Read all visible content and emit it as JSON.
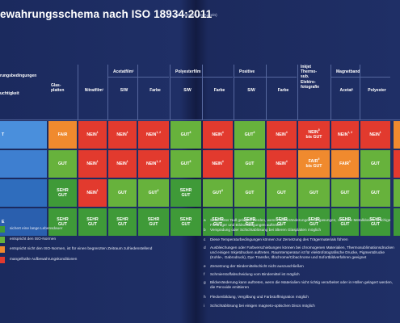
{
  "title": "ewahrungsschema nach ISO 18934:2011",
  "subtitle": "(Übersetzung der Autorin)",
  "header": {
    "row_label_top": "rungsbedingungen",
    "row_label_bottom": "uchtigkeit",
    "columns": [
      {
        "key": "glas",
        "label": "Glas-\nplatten"
      },
      {
        "key": "nitrat",
        "label": "Nitratfilm¹"
      },
      {
        "key": "acetat_sw",
        "label": "S/W"
      },
      {
        "key": "acetat_farbe",
        "label": "Farbe"
      },
      {
        "key": "poly_sw",
        "label": "S/W"
      },
      {
        "key": "poly_farbe",
        "label": "Farbe"
      },
      {
        "key": "pos_sw",
        "label": "S/W"
      },
      {
        "key": "pos_farbe",
        "label": "Farbe"
      },
      {
        "key": "inkjet",
        "label": "Inkjet\nThermo-\nsub.\nElektro-\nfotografie"
      },
      {
        "key": "mag_acetat",
        "label": "Acetat¹"
      },
      {
        "key": "mag_poly",
        "label": "Polyester"
      }
    ],
    "groups": [
      {
        "label": "Acetatfilm¹"
      },
      {
        "label": "Polyesterfilm"
      },
      {
        "label": "Positive"
      },
      {
        "label": "Magnetband"
      }
    ]
  },
  "rows": [
    {
      "label": "T",
      "cells": [
        {
          "text": "FAIR",
          "sup": "",
          "color": "#f08a2e"
        },
        {
          "text": "NEIN",
          "sup": "1",
          "color": "#e23a2e"
        },
        {
          "text": "NEIN",
          "sup": "1",
          "color": "#e23a2e"
        },
        {
          "text": "NEIN",
          "sup": "1, 2",
          "color": "#e23a2e"
        },
        {
          "text": "GUT",
          "sup": "3",
          "color": "#67b23c"
        },
        {
          "text": "NEIN",
          "sup": "4",
          "color": "#e23a2e"
        },
        {
          "text": "GUT",
          "sup": "3",
          "color": "#67b23c"
        },
        {
          "text": "NEIN",
          "sup": "4",
          "color": "#e23a2e"
        },
        {
          "text": "NEIN",
          "sup": "5",
          "line2": "bis GUT",
          "color": "#e23a2e"
        },
        {
          "text": "NEIN",
          "sup": "1, 2",
          "color": "#e23a2e"
        },
        {
          "text": "NEIN",
          "sup": "1",
          "color": "#e23a2e"
        }
      ]
    },
    {
      "label": "",
      "cells": [
        {
          "text": "GUT",
          "sup": "",
          "color": "#67b23c"
        },
        {
          "text": "NEIN",
          "sup": "1",
          "color": "#e23a2e"
        },
        {
          "text": "NEIN",
          "sup": "1",
          "color": "#e23a2e"
        },
        {
          "text": "NEIN",
          "sup": "1, 2",
          "color": "#e23a2e"
        },
        {
          "text": "GUT",
          "sup": "3",
          "color": "#67b23c"
        },
        {
          "text": "NEIN",
          "sup": "4",
          "color": "#e23a2e"
        },
        {
          "text": "GUT",
          "sup": "",
          "color": "#67b23c"
        },
        {
          "text": "NEIN",
          "sup": "4",
          "color": "#e23a2e"
        },
        {
          "text": "FAIR",
          "sup": "5",
          "line2": "bis GUT",
          "color": "#f08a2e"
        },
        {
          "text": "FAIR",
          "sup": "1",
          "color": "#f08a2e"
        },
        {
          "text": "GUT",
          "sup": "",
          "color": "#67b23c"
        }
      ]
    },
    {
      "label": "",
      "cells": [
        {
          "text": "SEHR",
          "line2": "GUT",
          "sup": "",
          "color": "#3f9a38"
        },
        {
          "text": "NEIN",
          "sup": "1",
          "color": "#e23a2e"
        },
        {
          "text": "GUT",
          "sup": "",
          "color": "#67b23c"
        },
        {
          "text": "GUT",
          "sup": "2",
          "color": "#67b23c"
        },
        {
          "text": "SEHR",
          "line2": "GUT",
          "sup": "",
          "color": "#3f9a38"
        },
        {
          "text": "GUT",
          "sup": "3",
          "color": "#67b23c"
        },
        {
          "text": "GUT",
          "sup": "",
          "color": "#67b23c"
        },
        {
          "text": "GUT",
          "sup": "",
          "color": "#67b23c"
        },
        {
          "text": "GUT",
          "sup": "",
          "color": "#67b23c"
        },
        {
          "text": "GUT",
          "sup": "",
          "color": "#67b23c"
        },
        {
          "text": "GUT",
          "sup": "",
          "color": "#67b23c"
        }
      ]
    },
    {
      "label": "E",
      "cells": [
        {
          "text": "SEHR",
          "line2": "GUT",
          "sup": "",
          "color": "#3f9a38"
        },
        {
          "text": "SEHR",
          "line2": "GUT",
          "sup": "",
          "color": "#3f9a38"
        },
        {
          "text": "SEHR",
          "line2": "GUT",
          "sup": "",
          "color": "#3f9a38"
        },
        {
          "text": "SEHR",
          "line2": "GUT",
          "sup": "",
          "color": "#3f9a38"
        },
        {
          "text": "SEHR",
          "line2": "GUT",
          "sup": "",
          "color": "#3f9a38"
        },
        {
          "text": "SEHR",
          "line2": "GUT",
          "sup": "",
          "color": "#3f9a38"
        },
        {
          "text": "SEHR",
          "line2": "GUT",
          "sup": "",
          "color": "#3f9a38"
        },
        {
          "text": "SEHR",
          "line2": "GUT",
          "sup": "",
          "color": "#3f9a38"
        },
        {
          "text": "SEHR",
          "line2": "GUT",
          "sup": "",
          "color": "#3f9a38"
        },
        {
          "text": "SEHR",
          "line2": "GUT",
          "sup": "",
          "color": "#3f9a38"
        },
        {
          "text": "SEHR",
          "line2": "GUT",
          "sup": "",
          "color": "#3f9a38"
        }
      ]
    }
  ],
  "row_label_colors": [
    "#4a8fdc",
    "#3e7fd0",
    "#2f6dbd",
    "#2a5fae"
  ],
  "edge_colors": [
    "#f08a2e",
    "#e23a2e",
    "#67b23c",
    "#3f9a38"
  ],
  "legend": [
    {
      "color": "#3f9a38",
      "text": "sichert eine lange Lebensdauer"
    },
    {
      "color": "#67b23c",
      "text": "entspricht den ISO-Normen"
    },
    {
      "color": "#f08a2e",
      "text": "entspricht nicht den ISO-Normen, ist für einen begrenzten Zeitraum zufriedenstellend"
    },
    {
      "color": "#e23a2e",
      "text": "mangelhafte Aufbewahrungskonditionen"
    }
  ],
  "footnotes": [
    {
      "key": "a",
      "text": "Sollte unter Null gelagert werden, wenn Farbveränderungen, Ausgasungen, rostende Metalldosen, brüchige Filmträger und Bildschädigungen auftreten"
    },
    {
      "key": "b",
      "text": "Verspödung oder Schichtablösung bei älteren Glasplatten möglich"
    },
    {
      "key": "c",
      "text": "Diese Temperaturbedingungen können zur Zersetzung des Trägermaterials führen"
    },
    {
      "key": "d",
      "text": "Ausbleichungen oder Farbverschiebungen können bei chromogenen Materialien, Thermosublimationsdrucken und einigen Inkjetdrucken auftreten. Raumtemperatur ist für elektrofotografische Drucke, Pigmentdrucke (Kohle-, Gabrodruck), Dye Transfer, Ilfochrome/Cibachrome und Sofortbildverfahren geeignet"
    },
    {
      "key": "e",
      "text": "Zersetzung der Bindemittelschicht nicht auszuschließen"
    },
    {
      "key": "f",
      "text": "Schmierstoffabscheidung vom Bindemittel ist möglich"
    },
    {
      "key": "g",
      "text": "Bildveränderung kann auftreten, wenn die Materialien nicht richtig verarbeitet oder in Hüllen gelagert werden, die Peroxide emittieren"
    },
    {
      "key": "h",
      "text": "Fleckenbildung, Vergilbung und Farbstoffmigration möglich"
    },
    {
      "key": "i",
      "text": "Schichtablösung bei einigen magneto-optischen Discs möglich"
    }
  ]
}
